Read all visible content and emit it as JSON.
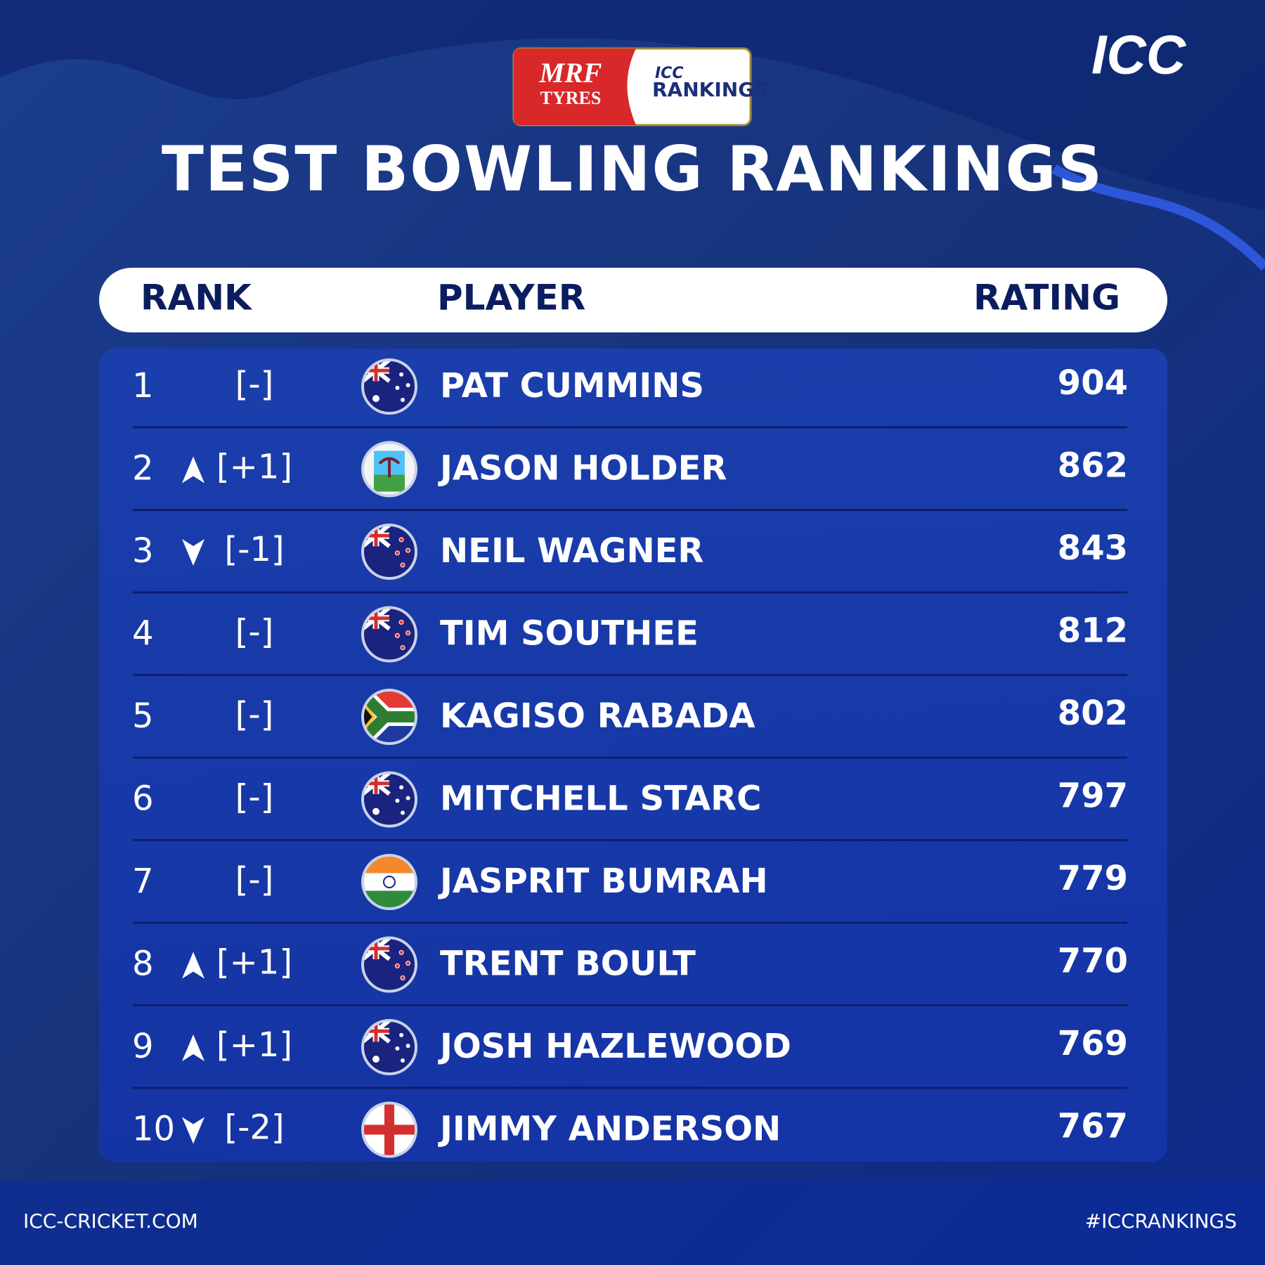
{
  "sponsor": {
    "brand": "MRF",
    "brand_sub": "TYRES",
    "org": "ICC",
    "label": "RANKINGS"
  },
  "logo": "ICC",
  "title": "TEST BOWLING RANKINGS",
  "table": {
    "columns": [
      "RANK",
      "PLAYER",
      "RATING"
    ],
    "rows": [
      {
        "rank": 1,
        "change": "[-]",
        "player": "PAT CUMMINS",
        "rating": 904
      },
      {
        "rank": 2,
        "change": "[+1]",
        "player": "JASON HOLDER",
        "rating": 862
      },
      {
        "rank": 3,
        "change": "[-1]",
        "player": "NEIL WAGNER",
        "rating": 843
      },
      {
        "rank": 4,
        "change": "[-]",
        "player": "TIM SOUTHEE",
        "rating": 812
      },
      {
        "rank": 5,
        "change": "[-]",
        "player": "KAGISO RABADA",
        "rating": 802
      },
      {
        "rank": 6,
        "change": "[-]",
        "player": "MITCHELL STARC",
        "rating": 797
      },
      {
        "rank": 7,
        "change": "[-]",
        "player": "JASPRIT BUMRAH",
        "rating": 779
      },
      {
        "rank": 8,
        "change": "[+1]",
        "player": "TRENT BOULT",
        "rating": 770
      },
      {
        "rank": 9,
        "change": "[+1]",
        "player": "JOSH HAZLEWOOD",
        "rating": 769
      },
      {
        "rank": 10,
        "change": "[-2]",
        "player": "JIMMY ANDERSON",
        "rating": 767
      }
    ]
  },
  "footer": {
    "left": "ICC-CRICKET.COM",
    "right": "#ICCRANKINGS"
  }
}
